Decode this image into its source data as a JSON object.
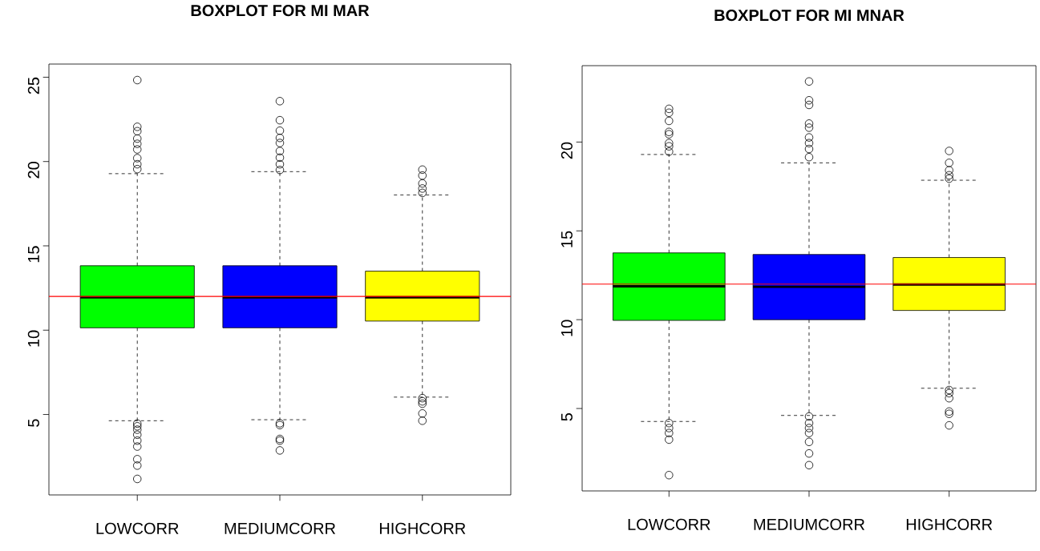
{
  "chart_data": [
    {
      "type": "box",
      "title": "**BOXPLOT FOR MI MAR**",
      "categories": [
        "LOWCORR",
        "MEDIUMCORR",
        "HIGHCORR"
      ],
      "colors": [
        "#00ff00",
        "#0000ff",
        "#ffff00"
      ],
      "boxes": [
        {
          "low": 4.63,
          "q1": 10.14,
          "median": 11.95,
          "q3": 13.82,
          "high": 19.28,
          "outliers": [
            24.83,
            22.06,
            21.8,
            21.36,
            21.05,
            20.72,
            20.2,
            19.84,
            19.55,
            4.46,
            4.3,
            4.1,
            3.8,
            3.45,
            3.1,
            2.35,
            1.97,
            1.18
          ]
        },
        {
          "low": 4.69,
          "q1": 10.14,
          "median": 11.95,
          "q3": 13.82,
          "high": 19.4,
          "outliers": [
            23.58,
            22.45,
            21.83,
            21.4,
            21.1,
            20.62,
            20.23,
            19.84,
            19.5,
            4.48,
            4.37,
            3.55,
            3.45,
            2.87
          ]
        },
        {
          "low": 6.03,
          "q1": 10.54,
          "median": 11.95,
          "q3": 13.5,
          "high": 18.02,
          "outliers": [
            19.52,
            19.17,
            18.7,
            18.4,
            18.14,
            5.97,
            5.78,
            5.64,
            5.06,
            4.63
          ]
        }
      ],
      "ylim": [
        0.23,
        25.78
      ],
      "yticks": [
        5,
        10,
        15,
        20,
        25
      ],
      "marker": "circle",
      "ref_lines": [
        {
          "axis": "y",
          "value": 12,
          "color": "#ff0000"
        }
      ]
    },
    {
      "type": "box",
      "title": "**BOXPLOT FOR MI MNAR**",
      "categories": [
        "LOWCORR",
        "MEDIUMCORR",
        "HIGHCORR"
      ],
      "colors": [
        "#00ff00",
        "#0000ff",
        "#ffff00"
      ],
      "boxes": [
        {
          "low": 4.27,
          "q1": 9.96,
          "median": 11.88,
          "q3": 13.76,
          "high": 19.3,
          "outliers": [
            21.87,
            21.65,
            21.19,
            20.57,
            20.44,
            19.94,
            19.76,
            19.46,
            4.18,
            3.9,
            3.62,
            3.25,
            1.25
          ]
        },
        {
          "low": 4.61,
          "q1": 10.0,
          "median": 11.85,
          "q3": 13.67,
          "high": 18.83,
          "outliers": [
            23.41,
            22.35,
            22.09,
            21.04,
            20.81,
            20.26,
            19.94,
            19.61,
            19.15,
            4.55,
            4.18,
            3.9,
            3.62,
            3.12,
            2.47,
            1.81
          ]
        },
        {
          "low": 6.14,
          "q1": 10.52,
          "median": 11.98,
          "q3": 13.5,
          "high": 17.85,
          "outliers": [
            19.5,
            18.83,
            18.41,
            18.13,
            17.94,
            6.04,
            5.86,
            5.58,
            4.83,
            4.7,
            4.05
          ]
        }
      ],
      "ylim": [
        0.36,
        24.3
      ],
      "yticks": [
        5,
        10,
        15,
        20
      ],
      "marker": "circle",
      "ref_lines": [
        {
          "axis": "y",
          "value": 12,
          "color": "#ff0000"
        }
      ]
    }
  ]
}
